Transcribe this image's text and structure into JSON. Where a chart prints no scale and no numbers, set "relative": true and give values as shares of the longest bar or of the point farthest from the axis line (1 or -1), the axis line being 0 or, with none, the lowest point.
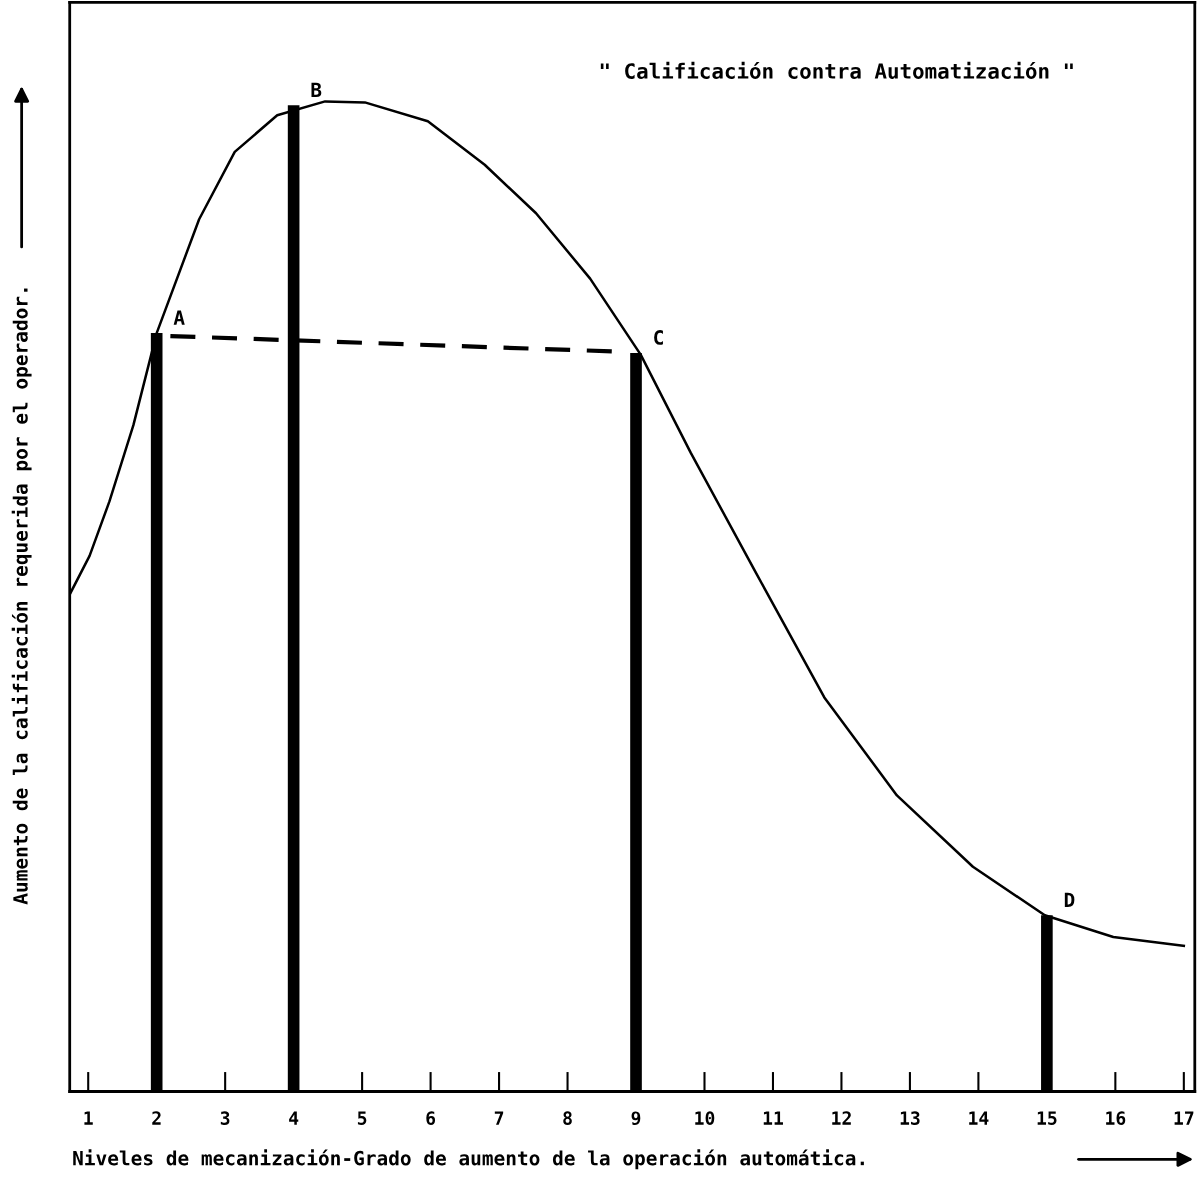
{
  "chart_data": {
    "type": "line",
    "title": "\" Calificación contra Automatización \"",
    "xlabel": "Niveles de mecanización-Grado de aumento de la operación automática.",
    "ylabel": "Aumento de la calificación requerida por el operador.",
    "relative": true,
    "xlim": [
      0.73,
      17.16
    ],
    "xticks": [
      1,
      2,
      3,
      4,
      5,
      6,
      7,
      8,
      9,
      10,
      11,
      12,
      13,
      14,
      15,
      16,
      17
    ],
    "series": [
      {
        "color": "#000000",
        "line_style": "solid",
        "x": [
          0.73,
          1.02,
          1.31,
          1.66,
          2.0,
          2.62,
          3.14,
          3.76,
          4.46,
          5.04,
          5.96,
          6.79,
          7.54,
          8.33,
          9.07,
          9.8,
          10.75,
          11.75,
          12.81,
          13.92,
          14.97,
          15.97,
          17.0
        ],
        "values": [
          0.502,
          0.541,
          0.596,
          0.673,
          0.766,
          0.881,
          0.949,
          0.986,
          1.0,
          0.999,
          0.98,
          0.936,
          0.887,
          0.821,
          0.744,
          0.645,
          0.524,
          0.398,
          0.299,
          0.227,
          0.178,
          0.156,
          0.147
        ]
      },
      {
        "type": "bar",
        "color": "#000000",
        "x": [
          2,
          4,
          9,
          15
        ],
        "values": [
          0.766,
          0.996,
          0.746,
          0.178
        ]
      },
      {
        "type": "line",
        "color": "#000000",
        "line_style": "dashed",
        "x": [
          2.2,
          8.85
        ],
        "values": [
          0.763,
          0.747
        ]
      }
    ],
    "annotations": [
      {
        "text": "A",
        "x": 2,
        "y": 0.766
      },
      {
        "text": "B",
        "x": 4,
        "y": 0.996
      },
      {
        "text": "C",
        "x": 9,
        "y": 0.746
      },
      {
        "text": "D",
        "x": 15,
        "y": 0.178
      }
    ]
  }
}
